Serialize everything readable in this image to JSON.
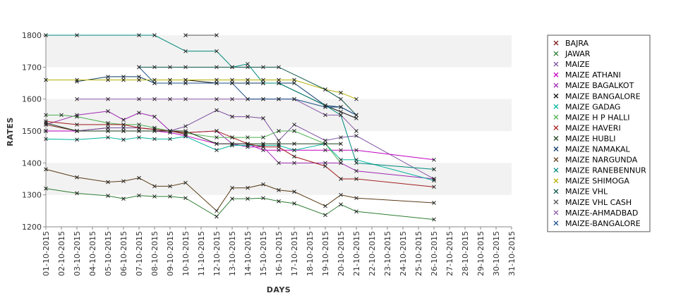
{
  "chart_data": {
    "type": "line",
    "title": "",
    "xlabel": "DAYS",
    "ylabel": "RATES",
    "ylim": [
      1200,
      1800
    ],
    "yticks": [
      1200,
      1300,
      1400,
      1500,
      1600,
      1700,
      1800
    ],
    "grid": "alternating horizontal bands",
    "legend_position": "right",
    "categories": [
      "01-10-2015",
      "02-10-2015",
      "03-10-2015",
      "04-10-2015",
      "05-10-2015",
      "06-10-2015",
      "07-10-2015",
      "08-10-2015",
      "09-10-2015",
      "10-10-2015",
      "11-10-2015",
      "12-10-2015",
      "13-10-2015",
      "14-10-2015",
      "15-10-2015",
      "16-10-2015",
      "17-10-2015",
      "18-10-2015",
      "19-10-2015",
      "20-10-2015",
      "21-10-2015",
      "22-10-2015",
      "23-10-2015",
      "24-10-2015",
      "25-10-2015",
      "26-10-2015",
      "27-10-2015",
      "28-10-2015",
      "29-10-2015",
      "30-10-2015",
      "31-10-2015"
    ],
    "series": [
      {
        "name": "BAJRA",
        "color": "#7a1f1f",
        "points": [
          [
            0,
            1520
          ],
          [
            2,
            1500
          ],
          [
            4,
            1510
          ],
          [
            6,
            1510
          ],
          [
            8,
            1500
          ],
          [
            9,
            1490
          ]
        ]
      },
      {
        "name": "JAWAR",
        "color": "#2e7d32",
        "points": [
          [
            0,
            1320
          ],
          [
            2,
            1305
          ],
          [
            4,
            1297
          ],
          [
            5,
            1288
          ],
          [
            6,
            1298
          ],
          [
            7,
            1295
          ],
          [
            8,
            1295
          ],
          [
            9,
            1290
          ],
          [
            11,
            1232
          ],
          [
            12,
            1288
          ],
          [
            13,
            1288
          ],
          [
            14,
            1290
          ],
          [
            15,
            1280
          ],
          [
            16,
            1273
          ],
          [
            18,
            1237
          ],
          [
            19,
            1270
          ],
          [
            20,
            1248
          ],
          [
            25,
            1223
          ]
        ]
      },
      {
        "name": "MAIZE",
        "color": "#7b4fa0",
        "points": [
          [
            0,
            1500
          ],
          [
            2,
            1500
          ],
          [
            4,
            1510
          ],
          [
            5,
            1510
          ],
          [
            6,
            1510
          ],
          [
            7,
            1505
          ],
          [
            8,
            1500
          ],
          [
            9,
            1515
          ],
          [
            11,
            1565
          ],
          [
            12,
            1545
          ],
          [
            13,
            1545
          ],
          [
            14,
            1540
          ],
          [
            15,
            1470
          ],
          [
            16,
            1520
          ],
          [
            18,
            1470
          ],
          [
            19,
            1480
          ],
          [
            20,
            1485
          ],
          [
            25,
            1350
          ]
        ]
      },
      {
        "name": "MAIZE ATHANI",
        "color": "#c000c0",
        "points": [
          [
            0,
            1500
          ],
          [
            2,
            1500
          ],
          [
            4,
            1500
          ],
          [
            5,
            1500
          ],
          [
            6,
            1500
          ],
          [
            7,
            1500
          ],
          [
            8,
            1495
          ],
          [
            9,
            1485
          ],
          [
            11,
            1460
          ],
          [
            12,
            1460
          ],
          [
            13,
            1460
          ],
          [
            14,
            1440
          ],
          [
            15,
            1440
          ],
          [
            16,
            1440
          ],
          [
            18,
            1440
          ],
          [
            19,
            1440
          ],
          [
            20,
            1440
          ],
          [
            25,
            1410
          ]
        ]
      },
      {
        "name": "MAIZE BAGALKOT",
        "color": "#9c27b0",
        "points": [
          [
            0,
            1520
          ],
          [
            2,
            1550
          ],
          [
            4,
            1562
          ],
          [
            5,
            1535
          ],
          [
            6,
            1557
          ],
          [
            7,
            1545
          ],
          [
            8,
            1500
          ],
          [
            9,
            1495
          ],
          [
            11,
            1500
          ],
          [
            12,
            1460
          ],
          [
            13,
            1450
          ],
          [
            14,
            1450
          ],
          [
            15,
            1400
          ],
          [
            16,
            1400
          ],
          [
            18,
            1400
          ],
          [
            19,
            1400
          ],
          [
            20,
            1375
          ],
          [
            25,
            1350
          ]
        ]
      },
      {
        "name": "MAIZE BANGALORE",
        "color": "#111111",
        "points": [
          [
            9,
            1660
          ],
          [
            11,
            1650
          ],
          [
            12,
            1650
          ],
          [
            13,
            1650
          ],
          [
            14,
            1650
          ],
          [
            15,
            1650
          ],
          [
            18,
            1580
          ],
          [
            19,
            1560
          ],
          [
            20,
            1540
          ]
        ]
      },
      {
        "name": "MAIZE GADAG",
        "color": "#00b39b",
        "points": [
          [
            0,
            1475
          ],
          [
            2,
            1473
          ],
          [
            4,
            1480
          ],
          [
            5,
            1473
          ],
          [
            6,
            1480
          ],
          [
            7,
            1475
          ],
          [
            8,
            1475
          ],
          [
            9,
            1483
          ],
          [
            11,
            1440
          ],
          [
            12,
            1455
          ],
          [
            13,
            1455
          ],
          [
            14,
            1455
          ],
          [
            15,
            1455
          ],
          [
            16,
            1440
          ],
          [
            18,
            1460
          ],
          [
            19,
            1410
          ],
          [
            20,
            1410
          ],
          [
            25,
            1345
          ]
        ]
      },
      {
        "name": "MAIZE H P HALLI",
        "color": "#4caf50",
        "points": [
          [
            0,
            1550
          ],
          [
            1,
            1550
          ],
          [
            2,
            1545
          ],
          [
            4,
            1525
          ],
          [
            5,
            1520
          ],
          [
            6,
            1520
          ],
          [
            7,
            1510
          ],
          [
            8,
            1500
          ],
          [
            11,
            1480
          ],
          [
            12,
            1480
          ],
          [
            13,
            1480
          ],
          [
            14,
            1480
          ],
          [
            15,
            1500
          ],
          [
            16,
            1500
          ],
          [
            18,
            1460
          ],
          [
            19,
            1400
          ]
        ]
      },
      {
        "name": "MAIZE HAVERI",
        "color": "#a11b1b",
        "points": [
          [
            0,
            1530
          ],
          [
            2,
            1520
          ],
          [
            4,
            1520
          ],
          [
            5,
            1520
          ],
          [
            6,
            1510
          ],
          [
            7,
            1505
          ],
          [
            8,
            1500
          ],
          [
            9,
            1495
          ],
          [
            11,
            1500
          ],
          [
            12,
            1480
          ],
          [
            13,
            1460
          ],
          [
            14,
            1450
          ],
          [
            15,
            1450
          ],
          [
            16,
            1420
          ],
          [
            18,
            1390
          ],
          [
            19,
            1350
          ],
          [
            20,
            1350
          ],
          [
            25,
            1325
          ]
        ]
      },
      {
        "name": "MAIZE HUBLI",
        "color": "#1b3d1b",
        "points": [
          [
            0,
            1525
          ],
          [
            2,
            1500
          ],
          [
            4,
            1500
          ],
          [
            5,
            1500
          ],
          [
            6,
            1500
          ],
          [
            7,
            1500
          ],
          [
            8,
            1500
          ],
          [
            9,
            1500
          ],
          [
            11,
            1460
          ],
          [
            12,
            1460
          ],
          [
            13,
            1460
          ],
          [
            14,
            1460
          ],
          [
            15,
            1460
          ],
          [
            16,
            1460
          ],
          [
            18,
            1460
          ],
          [
            19,
            1460
          ]
        ]
      },
      {
        "name": "MAIZE NAMAKAL",
        "color": "#0d3b66",
        "points": [
          [
            2,
            1655
          ],
          [
            4,
            1670
          ],
          [
            5,
            1670
          ],
          [
            6,
            1670
          ],
          [
            7,
            1650
          ],
          [
            8,
            1650
          ],
          [
            9,
            1650
          ],
          [
            11,
            1650
          ],
          [
            12,
            1650
          ],
          [
            13,
            1650
          ],
          [
            14,
            1650
          ],
          [
            15,
            1650
          ],
          [
            16,
            1650
          ],
          [
            18,
            1580
          ],
          [
            19,
            1575
          ],
          [
            20,
            1550
          ]
        ]
      },
      {
        "name": "MAIZE NARGUNDA",
        "color": "#5a3b16",
        "points": [
          [
            0,
            1380
          ],
          [
            2,
            1355
          ],
          [
            4,
            1340
          ],
          [
            5,
            1343
          ],
          [
            6,
            1353
          ],
          [
            7,
            1327
          ],
          [
            8,
            1327
          ],
          [
            9,
            1338
          ],
          [
            11,
            1250
          ],
          [
            12,
            1322
          ],
          [
            13,
            1322
          ],
          [
            14,
            1333
          ],
          [
            15,
            1315
          ],
          [
            16,
            1310
          ],
          [
            18,
            1265
          ],
          [
            19,
            1300
          ],
          [
            20,
            1290
          ],
          [
            25,
            1275
          ]
        ]
      },
      {
        "name": "MAIZE RANEBENNUR",
        "color": "#00897b",
        "points": [
          [
            0,
            1800
          ],
          [
            2,
            1800
          ],
          [
            6,
            1800
          ],
          [
            7,
            1800
          ],
          [
            9,
            1750
          ],
          [
            11,
            1750
          ],
          [
            12,
            1700
          ],
          [
            13,
            1710
          ],
          [
            14,
            1650
          ],
          [
            15,
            1650
          ],
          [
            18,
            1580
          ],
          [
            19,
            1550
          ],
          [
            20,
            1400
          ],
          [
            25,
            1380
          ]
        ]
      },
      {
        "name": "MAIZE SHIMOGA",
        "color": "#b5b000",
        "points": [
          [
            0,
            1660
          ],
          [
            2,
            1660
          ],
          [
            4,
            1660
          ],
          [
            5,
            1660
          ],
          [
            6,
            1660
          ],
          [
            7,
            1660
          ],
          [
            8,
            1660
          ],
          [
            9,
            1660
          ],
          [
            11,
            1660
          ],
          [
            12,
            1660
          ],
          [
            13,
            1660
          ],
          [
            14,
            1660
          ],
          [
            15,
            1660
          ],
          [
            16,
            1660
          ],
          [
            18,
            1630
          ],
          [
            19,
            1620
          ],
          [
            20,
            1600
          ]
        ]
      },
      {
        "name": "MAIZE VHL",
        "color": "#0b5345",
        "points": [
          [
            6,
            1700
          ],
          [
            7,
            1700
          ],
          [
            8,
            1700
          ],
          [
            9,
            1700
          ],
          [
            11,
            1700
          ],
          [
            12,
            1700
          ],
          [
            13,
            1700
          ],
          [
            14,
            1700
          ],
          [
            15,
            1700
          ],
          [
            18,
            1630
          ],
          [
            19,
            1600
          ],
          [
            20,
            1550
          ]
        ]
      },
      {
        "name": "MAIZE VHL CASH",
        "color": "#555555",
        "points": [
          [
            9,
            1800
          ],
          [
            11,
            1800
          ]
        ]
      },
      {
        "name": "MAIZE-AHMADBAD",
        "color": "#8e5aa8",
        "points": [
          [
            2,
            1600
          ],
          [
            4,
            1600
          ],
          [
            6,
            1600
          ],
          [
            7,
            1600
          ],
          [
            8,
            1600
          ],
          [
            9,
            1600
          ],
          [
            11,
            1600
          ],
          [
            12,
            1600
          ],
          [
            13,
            1600
          ],
          [
            14,
            1600
          ],
          [
            15,
            1600
          ],
          [
            16,
            1600
          ],
          [
            18,
            1550
          ],
          [
            19,
            1550
          ],
          [
            20,
            1500
          ]
        ]
      },
      {
        "name": "MAIZE-BANGALORE",
        "color": "#1a4f8a",
        "points": [
          [
            6,
            1700
          ],
          [
            7,
            1650
          ],
          [
            8,
            1650
          ],
          [
            9,
            1650
          ],
          [
            11,
            1650
          ],
          [
            12,
            1650
          ],
          [
            13,
            1600
          ],
          [
            14,
            1600
          ],
          [
            15,
            1600
          ],
          [
            16,
            1600
          ],
          [
            18,
            1575
          ],
          [
            19,
            1575
          ],
          [
            20,
            1550
          ]
        ]
      }
    ]
  }
}
